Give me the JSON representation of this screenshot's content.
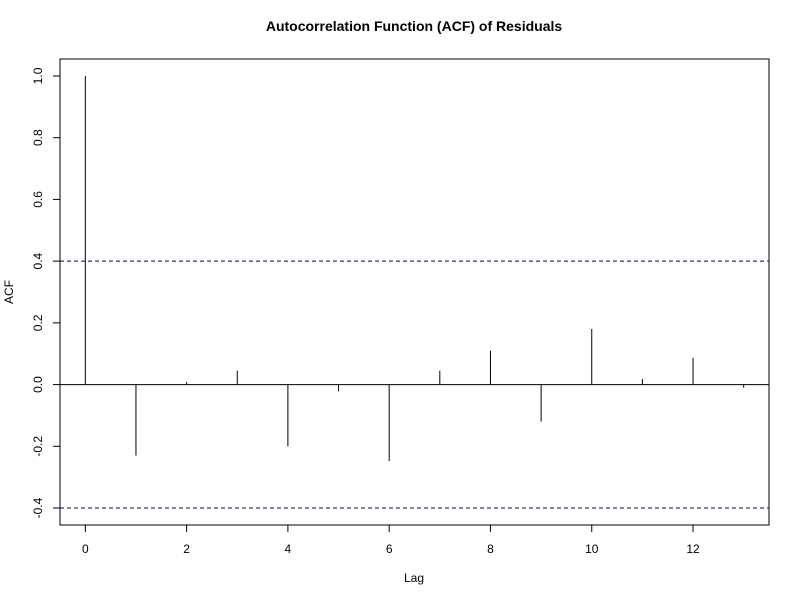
{
  "chart_data": {
    "type": "bar",
    "title": "Autocorrelation Function (ACF) of Residuals",
    "xlabel": "Lag",
    "ylabel": "ACF",
    "x": [
      0,
      1,
      2,
      3,
      4,
      5,
      6,
      7,
      8,
      9,
      10,
      11,
      12,
      13
    ],
    "values": [
      1.0,
      -0.23,
      0.008,
      0.045,
      -0.2,
      -0.022,
      -0.248,
      0.045,
      0.11,
      -0.12,
      0.18,
      0.018,
      0.087,
      -0.01
    ],
    "confidence_bounds": [
      0.4,
      -0.4
    ],
    "confidence_color": "#000080",
    "xlim": [
      -0.5,
      13.5
    ],
    "ylim": [
      -0.455,
      1.055
    ],
    "x_ticks": [
      0,
      2,
      4,
      6,
      8,
      10,
      12
    ],
    "y_ticks": [
      -0.4,
      -0.2,
      0.0,
      0.2,
      0.4,
      0.6,
      0.8,
      1.0
    ],
    "x_tick_labels": [
      "0",
      "2",
      "4",
      "6",
      "8",
      "10",
      "12"
    ],
    "y_tick_labels": [
      "-0.4",
      "-0.2",
      "0.0",
      "0.2",
      "0.4",
      "0.6",
      "0.8",
      "1.0"
    ],
    "grid": false,
    "legend": "none"
  }
}
